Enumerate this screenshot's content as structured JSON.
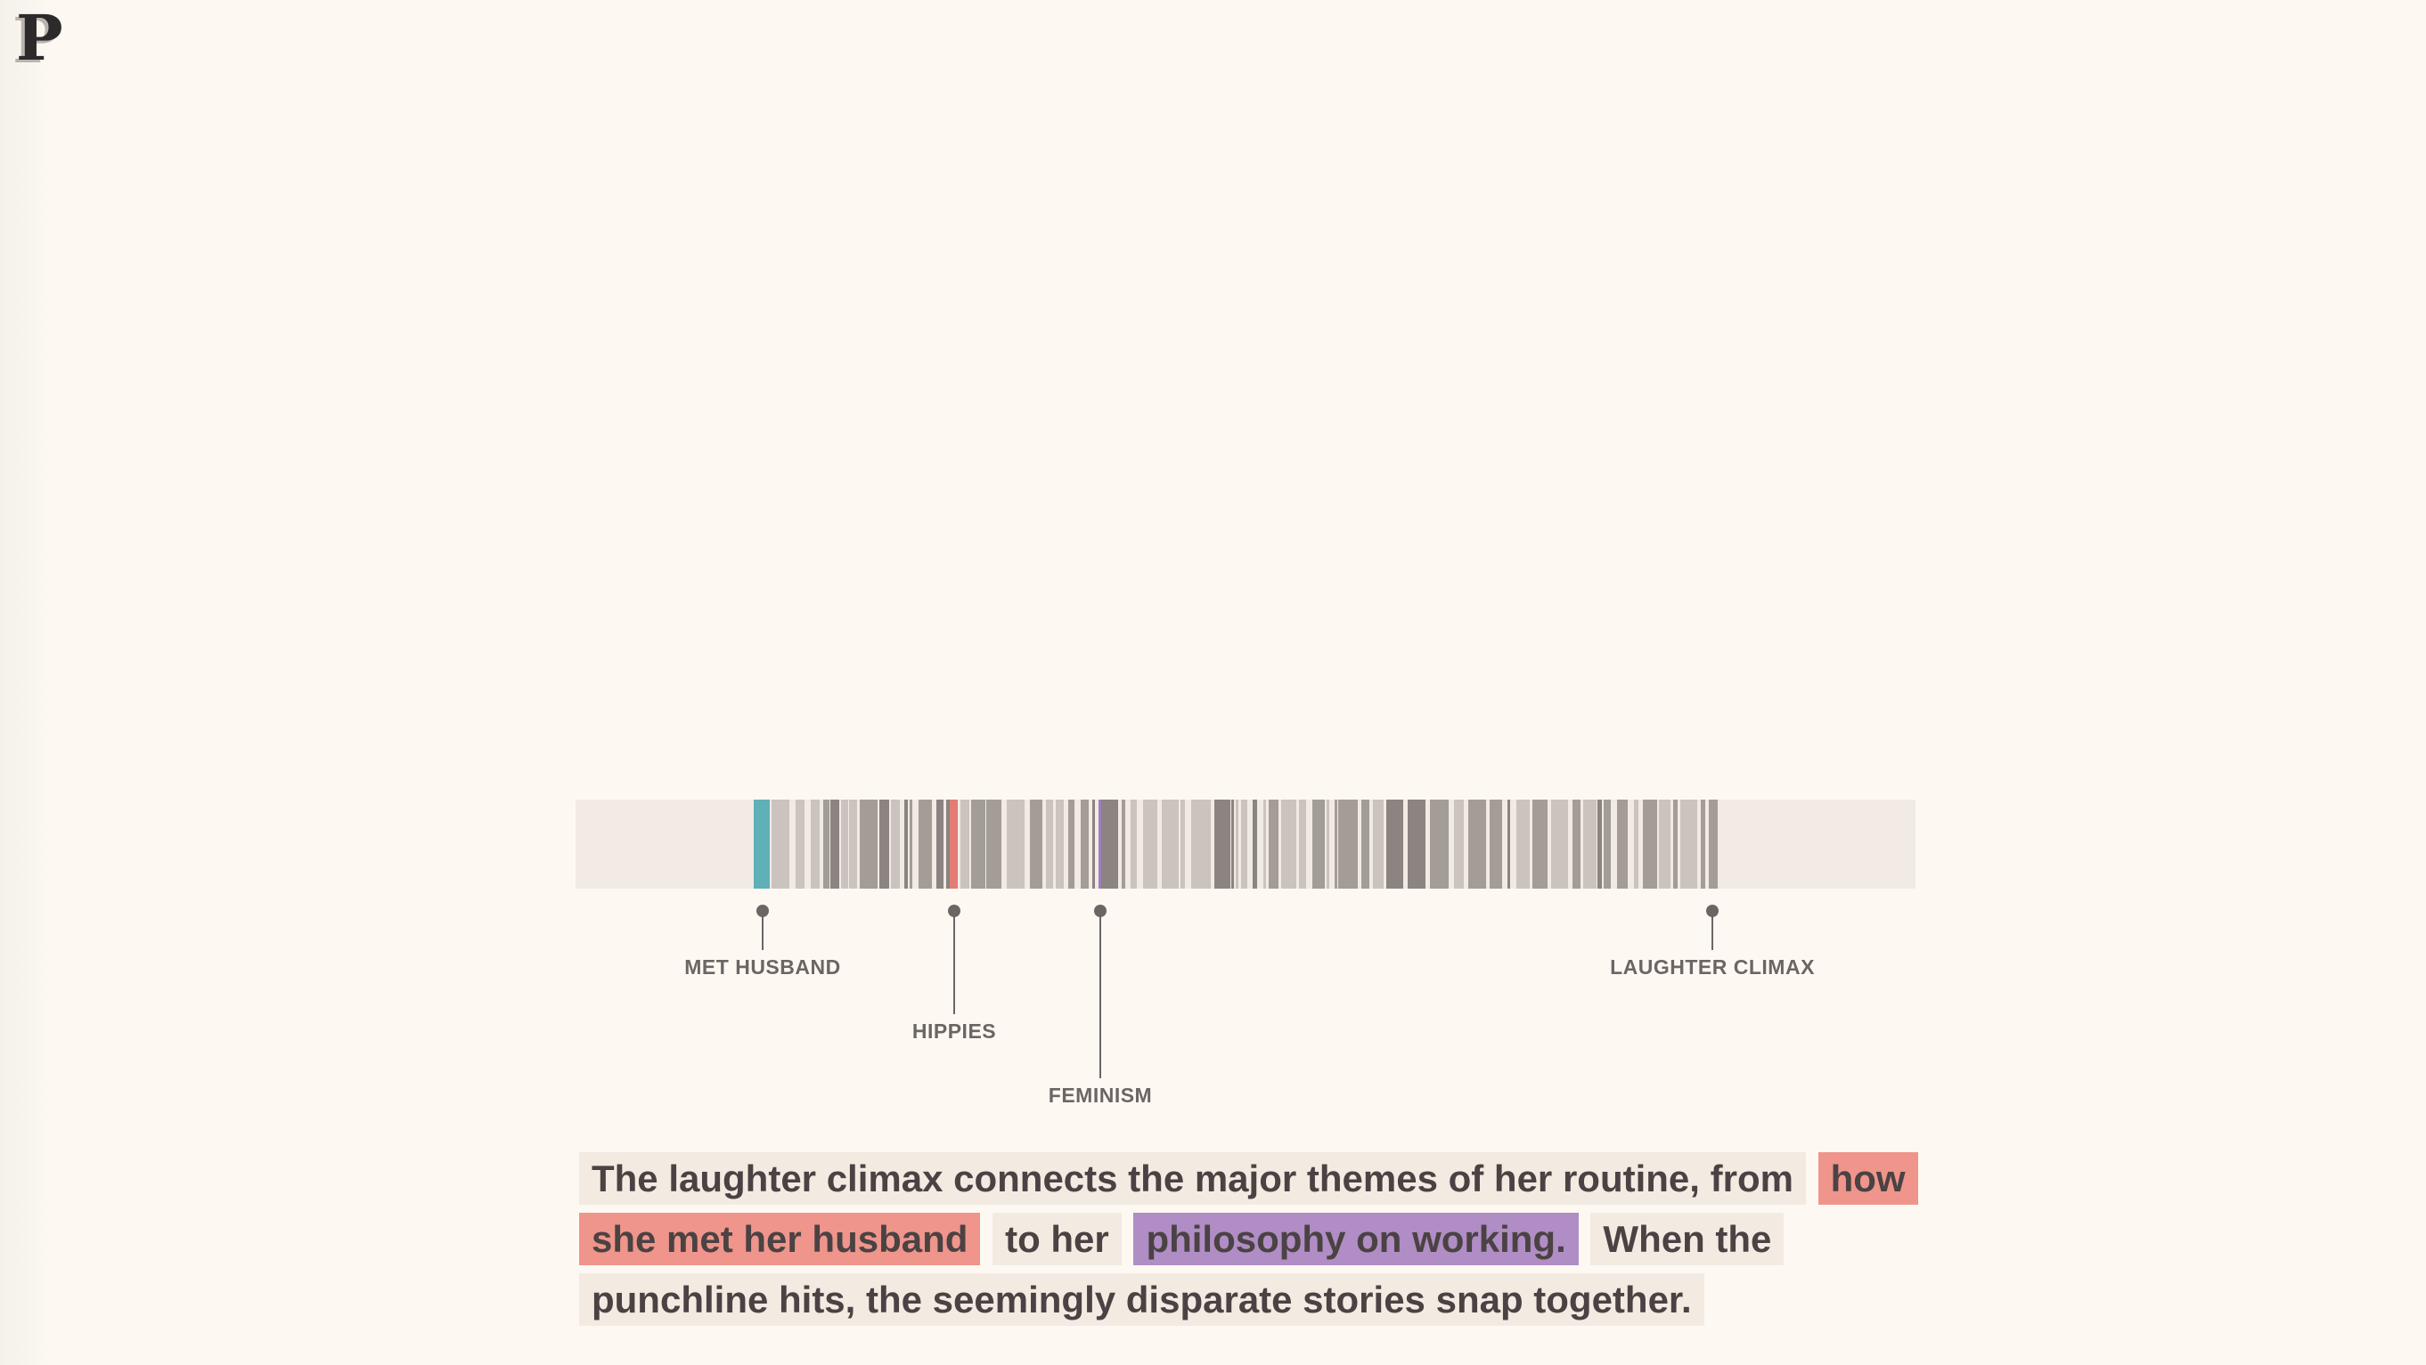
{
  "logo": {
    "letter": "P"
  },
  "timeline": {
    "track_color": "#f1ebe3",
    "colors": {
      "met_husband": "#5fb0b7",
      "hippies": "#e27c74",
      "feminism": "#9e7cc0",
      "light": "#cbc3be",
      "medium": "#a39c97",
      "dark": "#8b8480"
    },
    "markers": [
      {
        "label": "MET HUSBAND"
      },
      {
        "label": "HIPPIES"
      },
      {
        "label": "FEMINISM"
      },
      {
        "label": "LAUGHTER CLIMAX"
      }
    ]
  },
  "caption": {
    "segments": [
      {
        "text": "The laughter climax connects the major themes of her routine, from",
        "style": "plain"
      },
      {
        "text": "how she met her husband",
        "style": "red"
      },
      {
        "text": "to her",
        "style": "plain"
      },
      {
        "text": "philosophy on working.",
        "style": "purple"
      },
      {
        "text": "When the punchline hits, the seemingly disparate stories snap together.",
        "style": "plain"
      }
    ]
  }
}
